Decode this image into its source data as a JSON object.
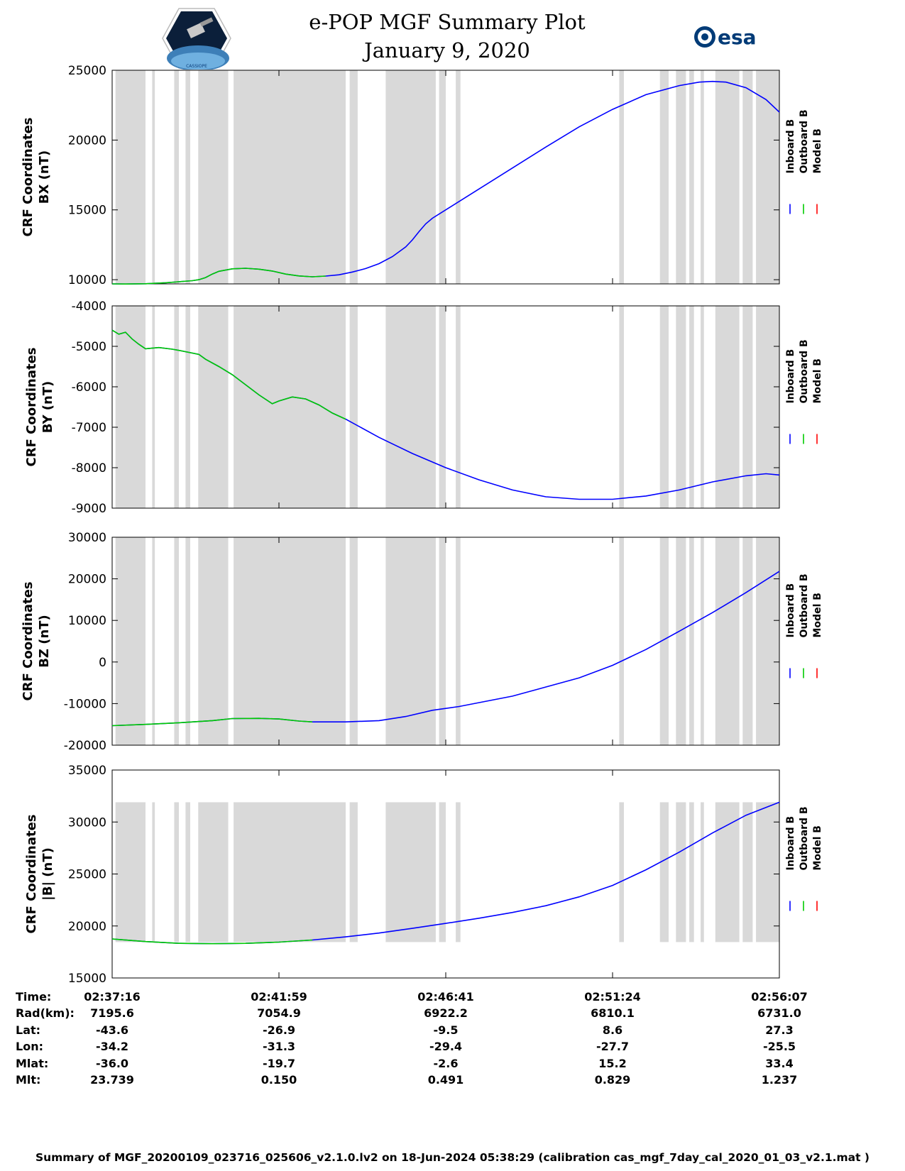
{
  "header": {
    "title": "e-POP MGF Summary Plot",
    "date": "January 9, 2020",
    "logo_left_text": "CASSIOPE",
    "logo_right_text": "esa"
  },
  "colors": {
    "inboard": "#0000ff",
    "outboard": "#00cc00",
    "model": "#ff0000",
    "gap_shading": "#d9d9d9"
  },
  "chart_data": [
    {
      "type": "line",
      "ylabel_line1": "CRF Coordinates",
      "ylabel_line2": "BX (nT)",
      "ylim": [
        9700,
        25000
      ],
      "yticks": [
        10000,
        15000,
        20000,
        25000
      ],
      "shade_range": [
        9700,
        25000
      ],
      "legend": [
        "Inboard B",
        "Outboard B",
        "Model B"
      ],
      "curve": [
        [
          0,
          9700
        ],
        [
          0.02,
          9690
        ],
        [
          0.05,
          9710
        ],
        [
          0.08,
          9780
        ],
        [
          0.1,
          9850
        ],
        [
          0.12,
          9930
        ],
        [
          0.13,
          10000
        ],
        [
          0.14,
          10150
        ],
        [
          0.15,
          10400
        ],
        [
          0.16,
          10600
        ],
        [
          0.18,
          10780
        ],
        [
          0.2,
          10820
        ],
        [
          0.22,
          10750
        ],
        [
          0.24,
          10620
        ],
        [
          0.26,
          10400
        ],
        [
          0.28,
          10270
        ],
        [
          0.3,
          10210
        ],
        [
          0.32,
          10260
        ],
        [
          0.34,
          10350
        ],
        [
          0.36,
          10550
        ],
        [
          0.38,
          10800
        ],
        [
          0.4,
          11150
        ],
        [
          0.42,
          11650
        ],
        [
          0.44,
          12350
        ],
        [
          0.45,
          12850
        ],
        [
          0.46,
          13450
        ],
        [
          0.47,
          14000
        ],
        [
          0.48,
          14400
        ],
        [
          0.5,
          15000
        ],
        [
          0.55,
          16500
        ],
        [
          0.6,
          18000
        ],
        [
          0.65,
          19500
        ],
        [
          0.7,
          20950
        ],
        [
          0.75,
          22200
        ],
        [
          0.8,
          23250
        ],
        [
          0.85,
          23900
        ],
        [
          0.88,
          24150
        ],
        [
          0.9,
          24200
        ],
        [
          0.92,
          24150
        ],
        [
          0.95,
          23750
        ],
        [
          0.98,
          22900
        ],
        [
          1.0,
          22000
        ]
      ],
      "outboard_end": 0.335
    },
    {
      "type": "line",
      "ylabel_line1": "CRF Coordinates",
      "ylabel_line2": "BY (nT)",
      "ylim": [
        -9000,
        -4000
      ],
      "yticks": [
        -9000,
        -8000,
        -7000,
        -6000,
        -5000,
        -4000
      ],
      "shade_range": [
        -9000,
        -4000
      ],
      "legend": [
        "Inboard B",
        "Outboard B",
        "Model B"
      ],
      "curve": [
        [
          0,
          -4600
        ],
        [
          0.01,
          -4700
        ],
        [
          0.02,
          -4650
        ],
        [
          0.03,
          -4820
        ],
        [
          0.04,
          -4950
        ],
        [
          0.05,
          -5060
        ],
        [
          0.07,
          -5030
        ],
        [
          0.09,
          -5070
        ],
        [
          0.1,
          -5100
        ],
        [
          0.13,
          -5200
        ],
        [
          0.14,
          -5320
        ],
        [
          0.16,
          -5500
        ],
        [
          0.18,
          -5700
        ],
        [
          0.2,
          -5950
        ],
        [
          0.22,
          -6200
        ],
        [
          0.24,
          -6420
        ],
        [
          0.25,
          -6350
        ],
        [
          0.27,
          -6250
        ],
        [
          0.29,
          -6300
        ],
        [
          0.31,
          -6450
        ],
        [
          0.33,
          -6650
        ],
        [
          0.35,
          -6800
        ],
        [
          0.4,
          -7250
        ],
        [
          0.45,
          -7650
        ],
        [
          0.5,
          -8000
        ],
        [
          0.55,
          -8300
        ],
        [
          0.6,
          -8550
        ],
        [
          0.65,
          -8720
        ],
        [
          0.7,
          -8780
        ],
        [
          0.75,
          -8780
        ],
        [
          0.8,
          -8700
        ],
        [
          0.85,
          -8550
        ],
        [
          0.9,
          -8350
        ],
        [
          0.95,
          -8200
        ],
        [
          0.98,
          -8150
        ],
        [
          1.0,
          -8180
        ]
      ],
      "outboard_end": 0.36
    },
    {
      "type": "line",
      "ylabel_line1": "CRF Coordinates",
      "ylabel_line2": "BZ (nT)",
      "ylim": [
        -20000,
        30000
      ],
      "yticks": [
        -20000,
        -10000,
        0,
        10000,
        20000,
        30000
      ],
      "shade_range": [
        -20000,
        30000
      ],
      "legend": [
        "Inboard B",
        "Outboard B",
        "Model B"
      ],
      "curve": [
        [
          0,
          -15300
        ],
        [
          0.05,
          -15000
        ],
        [
          0.1,
          -14600
        ],
        [
          0.15,
          -14100
        ],
        [
          0.18,
          -13600
        ],
        [
          0.22,
          -13550
        ],
        [
          0.25,
          -13700
        ],
        [
          0.28,
          -14200
        ],
        [
          0.3,
          -14400
        ],
        [
          0.35,
          -14400
        ],
        [
          0.4,
          -14100
        ],
        [
          0.44,
          -13100
        ],
        [
          0.48,
          -11600
        ],
        [
          0.52,
          -10700
        ],
        [
          0.6,
          -8200
        ],
        [
          0.7,
          -3800
        ],
        [
          0.75,
          -800
        ],
        [
          0.8,
          3000
        ],
        [
          0.85,
          7400
        ],
        [
          0.9,
          11900
        ],
        [
          0.95,
          16700
        ],
        [
          1.0,
          21800
        ]
      ],
      "outboard_end": 0.32
    },
    {
      "type": "line",
      "ylabel_line1": "CRF Coordinates",
      "ylabel_line2": "|B| (nT)",
      "ylim": [
        15000,
        35000
      ],
      "yticks": [
        15000,
        20000,
        25000,
        30000,
        35000
      ],
      "shade_range": [
        18450,
        31900
      ],
      "legend": [
        "Inboard B",
        "Outboard B",
        "Model B"
      ],
      "curve": [
        [
          0,
          18750
        ],
        [
          0.05,
          18500
        ],
        [
          0.1,
          18330
        ],
        [
          0.15,
          18300
        ],
        [
          0.2,
          18330
        ],
        [
          0.25,
          18450
        ],
        [
          0.3,
          18650
        ],
        [
          0.35,
          18950
        ],
        [
          0.4,
          19320
        ],
        [
          0.45,
          19770
        ],
        [
          0.5,
          20250
        ],
        [
          0.55,
          20750
        ],
        [
          0.6,
          21300
        ],
        [
          0.65,
          21950
        ],
        [
          0.7,
          22800
        ],
        [
          0.75,
          23900
        ],
        [
          0.8,
          25400
        ],
        [
          0.85,
          27100
        ],
        [
          0.9,
          28950
        ],
        [
          0.95,
          30650
        ],
        [
          1.0,
          31900
        ]
      ],
      "outboard_end": 0.32
    }
  ],
  "shaded_intervals": [
    [
      0.005,
      0.05
    ],
    [
      0.06,
      0.064
    ],
    [
      0.093,
      0.1
    ],
    [
      0.11,
      0.117
    ],
    [
      0.129,
      0.174
    ],
    [
      0.182,
      0.35
    ],
    [
      0.356,
      0.368
    ],
    [
      0.41,
      0.485
    ],
    [
      0.49,
      0.5
    ],
    [
      0.515,
      0.522
    ],
    [
      0.76,
      0.767
    ],
    [
      0.821,
      0.834
    ],
    [
      0.845,
      0.86
    ],
    [
      0.865,
      0.872
    ],
    [
      0.882,
      0.887
    ],
    [
      0.904,
      0.94
    ],
    [
      0.945,
      0.96
    ],
    [
      0.965,
      1.0
    ]
  ],
  "x_axis": {
    "tick_labels": [
      "02:37:16",
      "02:41:59",
      "02:46:41",
      "02:51:24",
      "02:56:07"
    ]
  },
  "info_table": [
    {
      "label": "Time:",
      "values": [
        "02:37:16",
        "02:41:59",
        "02:46:41",
        "02:51:24",
        "02:56:07"
      ]
    },
    {
      "label": "Rad(km):",
      "values": [
        "7195.6",
        "7054.9",
        "6922.2",
        "6810.1",
        "6731.0"
      ]
    },
    {
      "label": "Lat:",
      "values": [
        "-43.6",
        "-26.9",
        "-9.5",
        "8.6",
        "27.3"
      ]
    },
    {
      "label": "Lon:",
      "values": [
        "-34.2",
        "-31.3",
        "-29.4",
        "-27.7",
        "-25.5"
      ]
    },
    {
      "label": "Mlat:",
      "values": [
        "-36.0",
        "-19.7",
        "-2.6",
        "15.2",
        "33.4"
      ]
    },
    {
      "label": "Mlt:",
      "values": [
        "23.739",
        "0.150",
        "0.491",
        "0.829",
        "1.237"
      ]
    }
  ],
  "footer": "Summary of MGF_20200109_023716_025606_v2.1.0.lv2 on 18-Jun-2024 05:38:29 (calibration cas_mgf_7day_cal_2020_01_03_v2.1.mat )"
}
